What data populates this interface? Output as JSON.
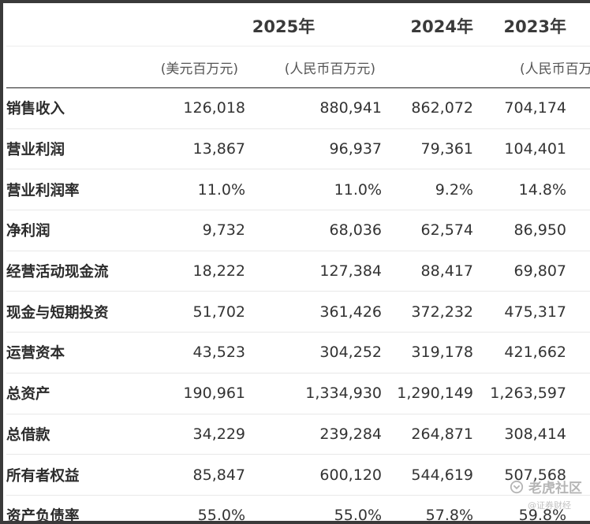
{
  "header": {
    "years": [
      "2025年",
      "2024年",
      "2023年"
    ],
    "units": [
      "(美元百万元)",
      "(人民币百万元)",
      "(人民币百万元"
    ]
  },
  "rows": [
    {
      "label": "销售收入",
      "values": [
        "126,018",
        "880,941",
        "862,072",
        "704,174"
      ]
    },
    {
      "label": "营业利润",
      "values": [
        "13,867",
        "96,937",
        "79,361",
        "104,401"
      ]
    },
    {
      "label": "营业利润率",
      "values": [
        "11.0%",
        "11.0%",
        "9.2%",
        "14.8%"
      ]
    },
    {
      "label": "净利润",
      "values": [
        "9,732",
        "68,036",
        "62,574",
        "86,950"
      ]
    },
    {
      "label": "经营活动现金流",
      "values": [
        "18,222",
        "127,384",
        "88,417",
        "69,807"
      ]
    },
    {
      "label": "现金与短期投资",
      "values": [
        "51,702",
        "361,426",
        "372,232",
        "475,317"
      ]
    },
    {
      "label": "运营资本",
      "values": [
        "43,523",
        "304,252",
        "319,178",
        "421,662"
      ]
    },
    {
      "label": "总资产",
      "values": [
        "190,961",
        "1,334,930",
        "1,290,149",
        "1,263,597"
      ]
    },
    {
      "label": "总借款",
      "values": [
        "34,229",
        "239,284",
        "264,871",
        "308,414"
      ]
    },
    {
      "label": "所有者权益",
      "values": [
        "85,847",
        "600,120",
        "544,619",
        "507,568"
      ]
    },
    {
      "label": "资产负债率",
      "values": [
        "55.0%",
        "55.0%",
        "57.8%",
        "59.8%"
      ]
    }
  ],
  "watermark": {
    "main": "老虎社区",
    "sub": "@证券财经",
    "icon": "tiger-logo-icon"
  }
}
